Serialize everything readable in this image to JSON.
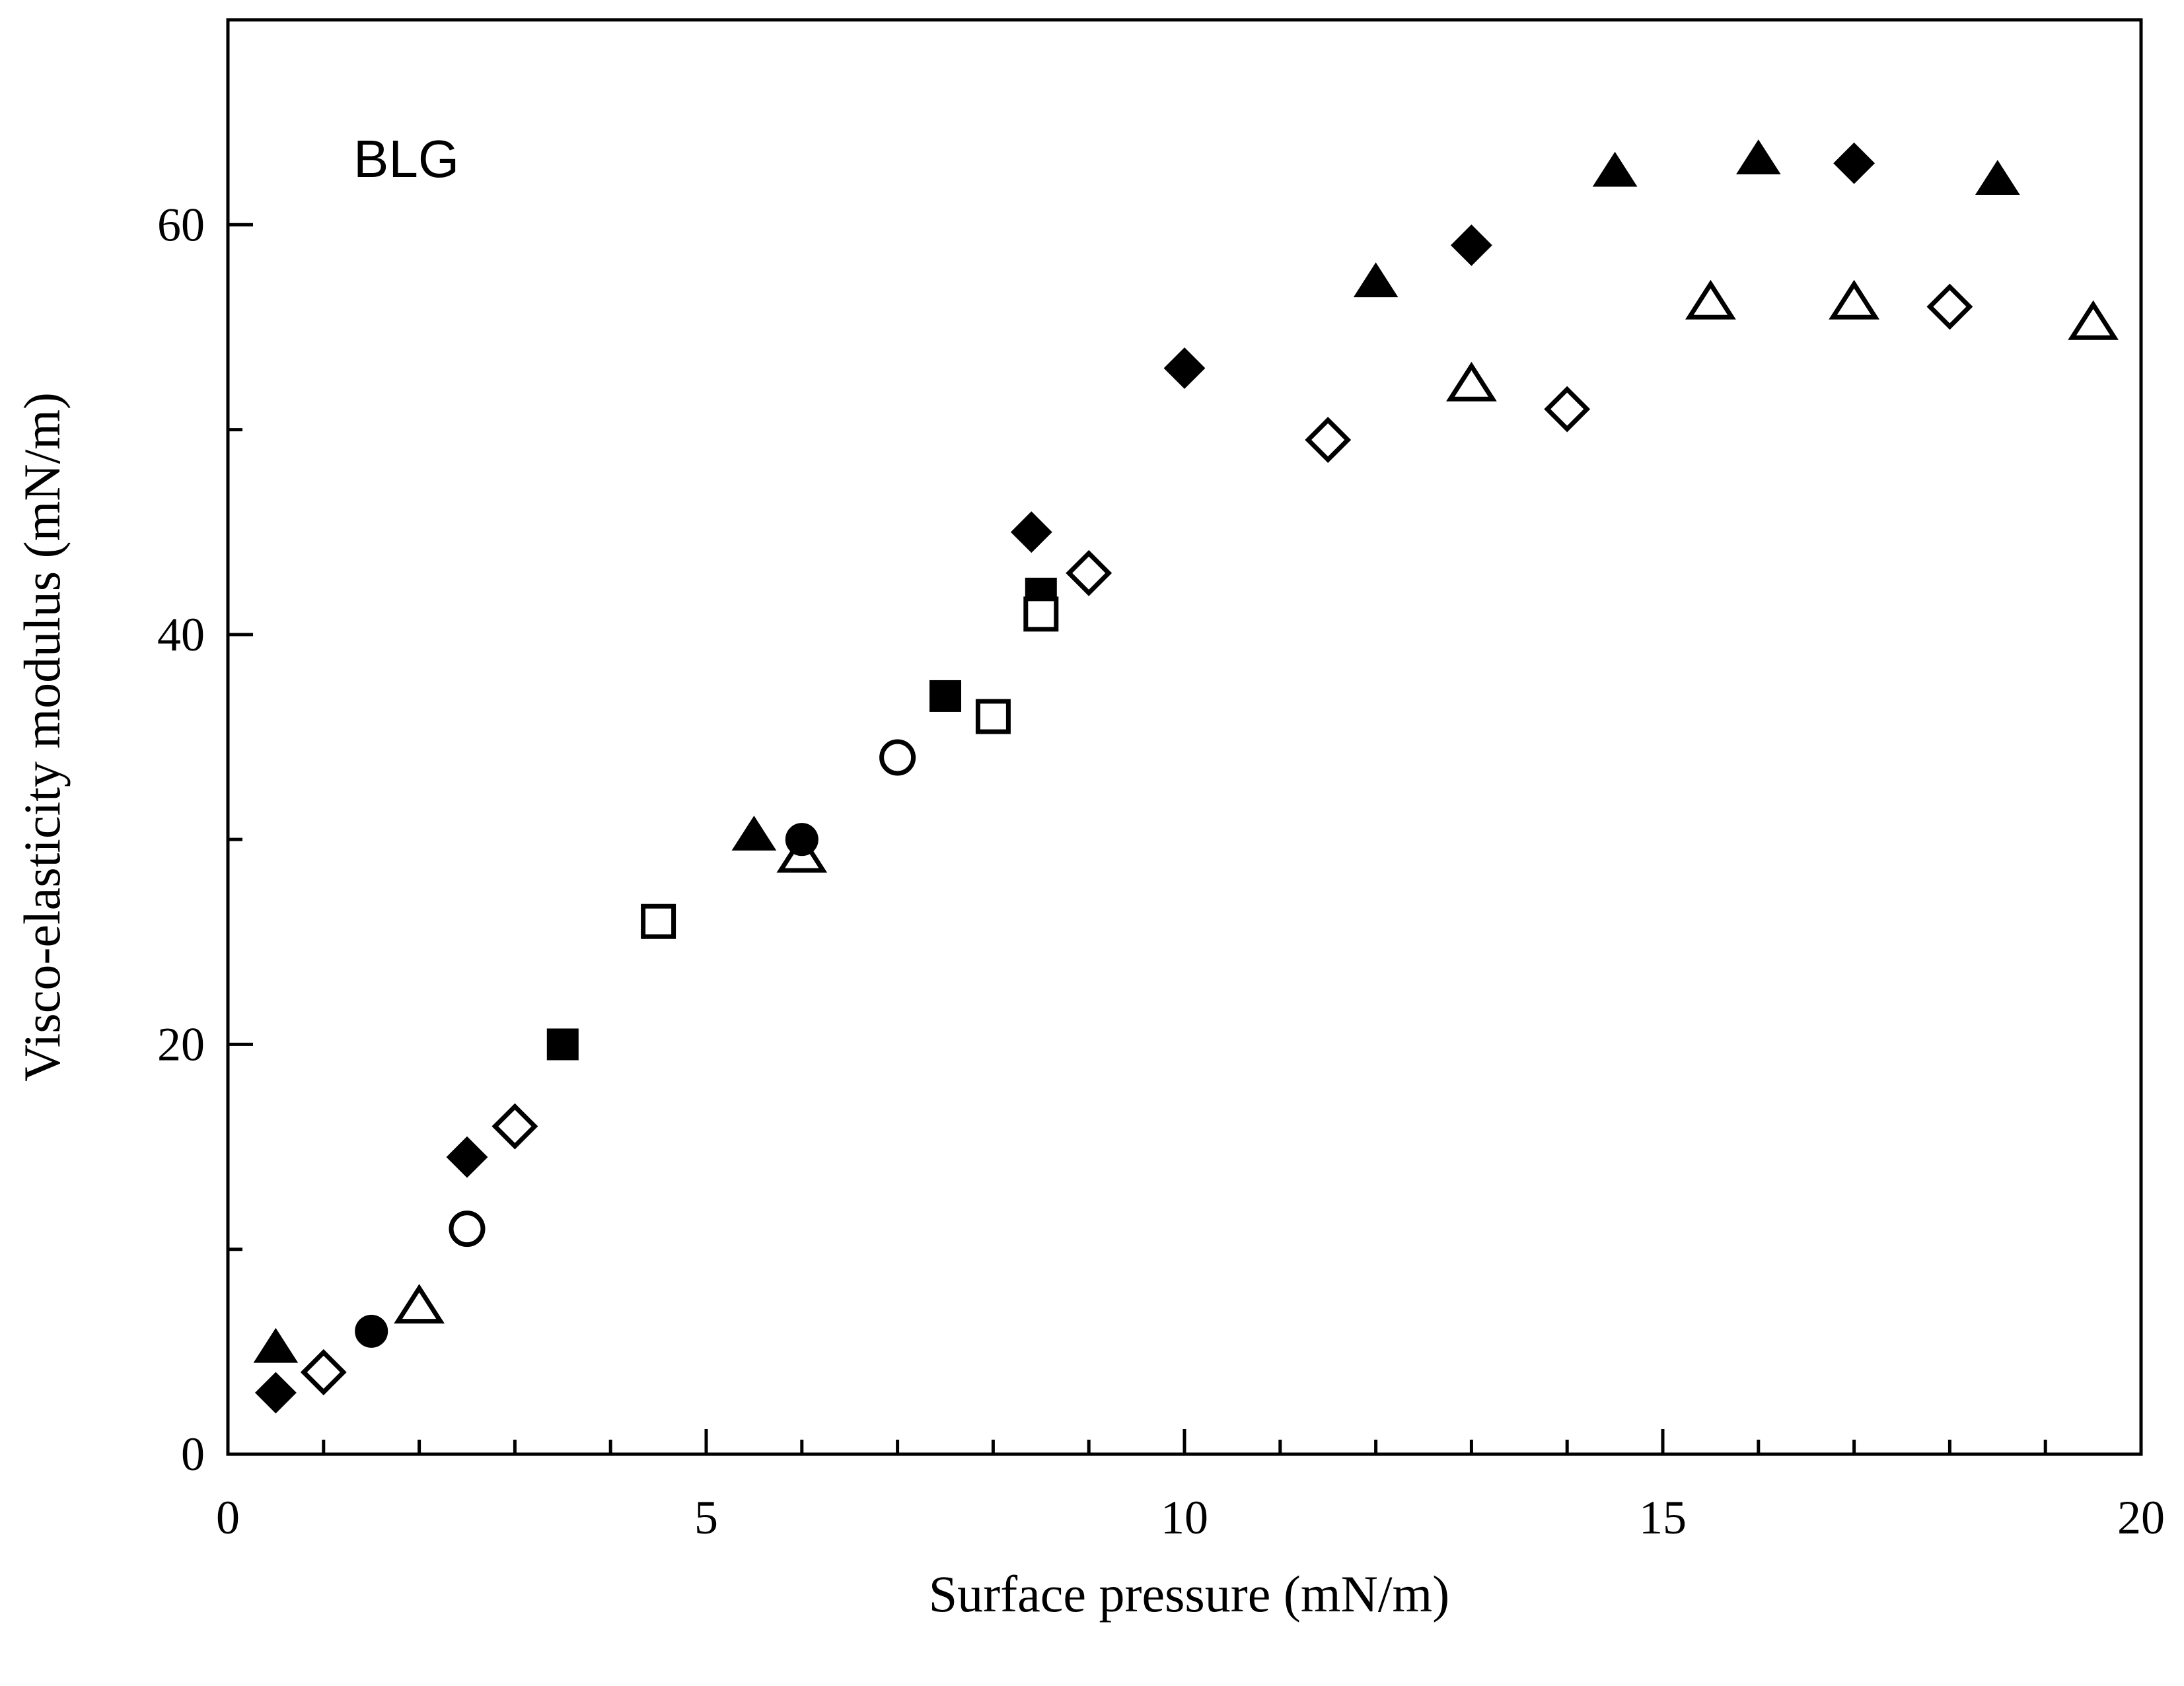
{
  "chart_data": {
    "type": "scatter",
    "title": "",
    "annotation": "BLG",
    "xlabel": "Surface pressure (mN/m)",
    "ylabel": "Visco-elasticity modulus (mN/m)",
    "xlim": [
      0,
      20
    ],
    "ylim": [
      0,
      70
    ],
    "xticks": [
      0,
      5,
      10,
      15,
      20
    ],
    "yticks": [
      0,
      20,
      40,
      60
    ],
    "x_minor_step": 1,
    "y_minor_step": 10,
    "grid": false,
    "series": [
      {
        "name": "filled-triangle",
        "marker": "triangle",
        "filled": true,
        "points": [
          [
            0.5,
            5.2
          ],
          [
            5.5,
            30.2
          ],
          [
            12,
            57.2
          ],
          [
            14.5,
            62.6
          ],
          [
            16,
            63.2
          ],
          [
            18.5,
            62.2
          ]
        ]
      },
      {
        "name": "open-triangle",
        "marker": "triangle",
        "filled": false,
        "points": [
          [
            2,
            7.2
          ],
          [
            6,
            29.2
          ],
          [
            13,
            52.2
          ],
          [
            15.5,
            56.2
          ],
          [
            17,
            56.2
          ],
          [
            19.5,
            55.2
          ]
        ]
      },
      {
        "name": "filled-diamond",
        "marker": "diamond",
        "filled": true,
        "points": [
          [
            0.5,
            3
          ],
          [
            2.5,
            14.5
          ],
          [
            8.4,
            45
          ],
          [
            10,
            53
          ],
          [
            13,
            59
          ],
          [
            17,
            63
          ]
        ]
      },
      {
        "name": "open-diamond",
        "marker": "diamond",
        "filled": false,
        "points": [
          [
            1,
            4
          ],
          [
            3,
            16
          ],
          [
            9,
            43
          ],
          [
            11.5,
            49.5
          ],
          [
            14,
            51
          ],
          [
            18,
            56
          ]
        ]
      },
      {
        "name": "filled-circle",
        "marker": "circle",
        "filled": true,
        "points": [
          [
            1.5,
            6
          ],
          [
            6,
            30
          ]
        ]
      },
      {
        "name": "open-circle",
        "marker": "circle",
        "filled": false,
        "points": [
          [
            2.5,
            11
          ],
          [
            7,
            34
          ]
        ]
      },
      {
        "name": "filled-square",
        "marker": "square",
        "filled": true,
        "points": [
          [
            3.5,
            20
          ],
          [
            7.5,
            37
          ],
          [
            8.5,
            42
          ]
        ]
      },
      {
        "name": "open-square",
        "marker": "square",
        "filled": false,
        "points": [
          [
            4.5,
            26
          ],
          [
            8,
            36
          ],
          [
            8.5,
            41
          ]
        ]
      }
    ]
  }
}
